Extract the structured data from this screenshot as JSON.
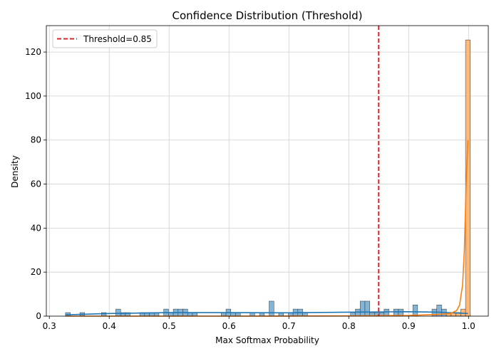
{
  "chart_data": {
    "type": "histogram",
    "title": "Confidence Distribution (Threshold)",
    "xlabel": "Max Softmax Probability",
    "ylabel": "Density",
    "xlim": [
      0.295,
      1.033
    ],
    "ylim": [
      0,
      132
    ],
    "xticks": [
      0.3,
      0.4,
      0.5,
      0.6,
      0.7,
      0.8,
      0.9,
      1.0
    ],
    "xtick_labels": [
      "0.3",
      "0.4",
      "0.5",
      "0.6",
      "0.7",
      "0.8",
      "0.9",
      "1.0"
    ],
    "yticks": [
      0,
      20,
      40,
      60,
      80,
      100,
      120
    ],
    "ytick_labels": [
      "0",
      "20",
      "40",
      "60",
      "80",
      "100",
      "120"
    ],
    "grid": true,
    "legend_position": "top-left",
    "threshold": {
      "value": 0.85,
      "label": "Threshold=0.85",
      "color": "#d62728"
    },
    "series": [
      {
        "color": "#1f77b4",
        "bins": [
          [
            0.327,
            1.6
          ],
          [
            0.351,
            1.6
          ],
          [
            0.387,
            1.6
          ],
          [
            0.411,
            3.2
          ],
          [
            0.419,
            1.6
          ],
          [
            0.427,
            1.6
          ],
          [
            0.451,
            1.6
          ],
          [
            0.459,
            1.6
          ],
          [
            0.467,
            1.6
          ],
          [
            0.475,
            1.6
          ],
          [
            0.491,
            3.2
          ],
          [
            0.499,
            1.6
          ],
          [
            0.507,
            3.2
          ],
          [
            0.515,
            3.2
          ],
          [
            0.523,
            3.2
          ],
          [
            0.531,
            1.6
          ],
          [
            0.539,
            1.6
          ],
          [
            0.587,
            1.6
          ],
          [
            0.595,
            3.2
          ],
          [
            0.603,
            1.6
          ],
          [
            0.611,
            1.6
          ],
          [
            0.635,
            1.6
          ],
          [
            0.651,
            1.6
          ],
          [
            0.667,
            6.8
          ],
          [
            0.683,
            1.6
          ],
          [
            0.699,
            1.6
          ],
          [
            0.707,
            3.2
          ],
          [
            0.715,
            3.2
          ],
          [
            0.723,
            1.6
          ],
          [
            0.803,
            1.6
          ],
          [
            0.811,
            3.2
          ],
          [
            0.819,
            6.8
          ],
          [
            0.827,
            6.8
          ],
          [
            0.835,
            1.6
          ],
          [
            0.843,
            1.6
          ],
          [
            0.851,
            1.6
          ],
          [
            0.859,
            3.2
          ],
          [
            0.875,
            3.2
          ],
          [
            0.883,
            3.2
          ],
          [
            0.907,
            5.1
          ],
          [
            0.939,
            3.2
          ],
          [
            0.947,
            5.1
          ],
          [
            0.955,
            3.2
          ],
          [
            0.963,
            1.6
          ],
          [
            0.971,
            1.6
          ],
          [
            0.979,
            1.6
          ],
          [
            0.987,
            1.6
          ],
          [
            0.995,
            1.6
          ]
        ],
        "bin_width": 0.008,
        "kde": [
          [
            0.327,
            0.6
          ],
          [
            0.4,
            1.2
          ],
          [
            0.5,
            1.6
          ],
          [
            0.6,
            1.6
          ],
          [
            0.7,
            1.5
          ],
          [
            0.8,
            1.8
          ],
          [
            0.85,
            1.9
          ],
          [
            0.9,
            2.0
          ],
          [
            0.95,
            1.8
          ],
          [
            0.999,
            1.2
          ]
        ]
      },
      {
        "color": "#ff7f0e",
        "bins": [
          [
            0.963,
            1.6
          ],
          [
            0.971,
            1.6
          ],
          [
            0.979,
            1.6
          ],
          [
            0.987,
            3.2
          ],
          [
            0.995,
            125.5
          ]
        ],
        "bin_width": 0.008,
        "kde": [
          [
            0.327,
            0.0
          ],
          [
            0.5,
            0.0
          ],
          [
            0.6,
            0.0
          ],
          [
            0.8,
            0.1
          ],
          [
            0.9,
            0.3
          ],
          [
            0.95,
            0.8
          ],
          [
            0.97,
            1.2
          ],
          [
            0.98,
            2.5
          ],
          [
            0.985,
            5
          ],
          [
            0.99,
            14
          ],
          [
            0.993,
            30
          ],
          [
            0.996,
            60
          ],
          [
            0.999,
            80
          ]
        ]
      }
    ]
  }
}
